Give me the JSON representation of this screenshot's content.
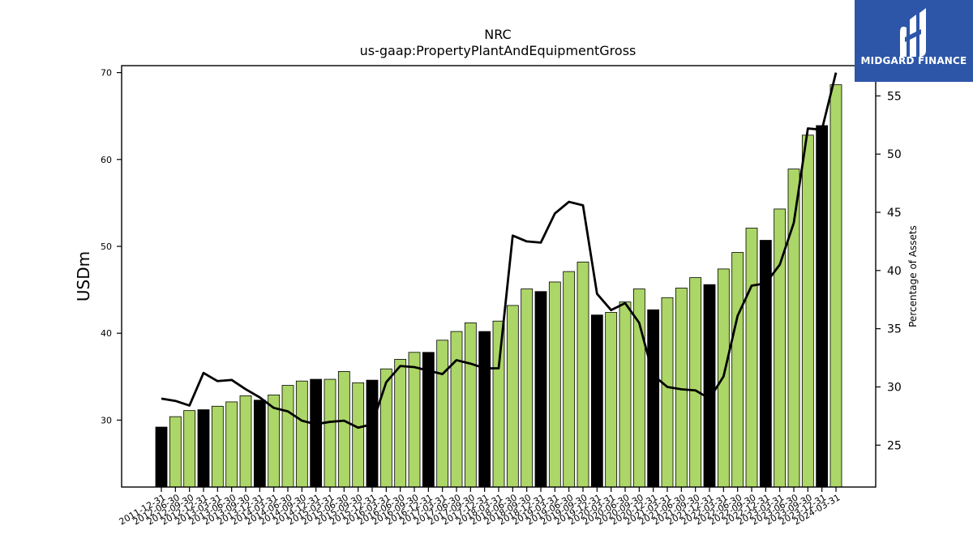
{
  "brand": {
    "name": "MIDGARD FINANCE",
    "logo_icon": "midgard-logo-icon",
    "background": "#2d56a8"
  },
  "chart_data": {
    "type": "bar",
    "title": "NRC",
    "subtitle": "us-gaap:PropertyPlantAndEquipmentGross",
    "ylabel": "USDm",
    "y2label": "Percentage of Assets",
    "ylim": [
      22.3,
      70.8
    ],
    "y2lim": [
      21.4,
      57.6
    ],
    "yticks": [
      "30",
      "40",
      "50",
      "60",
      "70"
    ],
    "y2ticks": [
      "25",
      "30",
      "35",
      "40",
      "45",
      "50",
      "55"
    ],
    "colors": {
      "annual_bar": "#000000",
      "quarter_bar": "#acd667",
      "line": "#000000"
    },
    "categories": [
      "2011-12-31",
      "2012-06-30",
      "2012-09-30",
      "2012-12-31",
      "2013-03-31",
      "2013-06-30",
      "2013-09-30",
      "2013-12-31",
      "2014-03-31",
      "2014-06-30",
      "2014-09-30",
      "2014-12-31",
      "2015-03-31",
      "2015-06-30",
      "2015-09-30",
      "2015-12-31",
      "2016-03-31",
      "2016-06-30",
      "2016-09-30",
      "2016-12-31",
      "2017-03-31",
      "2017-06-30",
      "2017-09-30",
      "2017-12-31",
      "2018-03-31",
      "2018-06-30",
      "2018-09-30",
      "2018-12-31",
      "2019-03-31",
      "2019-06-30",
      "2019-09-30",
      "2019-12-31",
      "2020-03-31",
      "2020-06-30",
      "2020-09-30",
      "2020-12-31",
      "2021-03-31",
      "2021-06-30",
      "2021-09-30",
      "2021-12-31",
      "2022-03-31",
      "2022-06-30",
      "2022-09-30",
      "2022-12-31",
      "2023-03-31",
      "2023-06-30",
      "2023-09-30",
      "2023-12-31",
      "2024-03-31"
    ],
    "annual": [
      true,
      false,
      false,
      true,
      false,
      false,
      false,
      true,
      false,
      false,
      false,
      true,
      false,
      false,
      false,
      true,
      false,
      false,
      false,
      true,
      false,
      false,
      false,
      true,
      false,
      false,
      false,
      true,
      false,
      false,
      false,
      true,
      false,
      false,
      false,
      true,
      false,
      false,
      false,
      true,
      false,
      false,
      false,
      true,
      false,
      false,
      false,
      true,
      false
    ],
    "series": [
      {
        "axis": "left",
        "values": [
          29.2,
          30.4,
          31.1,
          31.2,
          31.6,
          32.1,
          32.8,
          32.3,
          32.9,
          34.0,
          34.5,
          34.7,
          34.7,
          35.6,
          34.3,
          34.6,
          35.9,
          37.0,
          37.8,
          37.8,
          39.2,
          40.2,
          41.2,
          40.2,
          41.4,
          43.2,
          45.1,
          44.8,
          45.9,
          47.1,
          48.2,
          42.1,
          42.4,
          43.6,
          45.1,
          42.7,
          44.1,
          45.2,
          46.4,
          45.6,
          47.4,
          49.3,
          52.1,
          50.7,
          54.3,
          58.9,
          62.8,
          63.9,
          68.6
        ]
      },
      {
        "axis": "right",
        "values": [
          29.0,
          28.8,
          28.4,
          31.2,
          30.5,
          30.6,
          29.8,
          29.1,
          28.2,
          27.9,
          27.1,
          26.8,
          27.0,
          27.1,
          26.5,
          26.8,
          30.4,
          31.8,
          31.7,
          31.4,
          31.1,
          32.3,
          32.0,
          31.6,
          31.6,
          43.0,
          42.5,
          42.4,
          44.9,
          45.9,
          45.6,
          38.0,
          36.6,
          37.2,
          35.5,
          31.0,
          30.0,
          29.8,
          29.7,
          29.0,
          30.9,
          36.1,
          38.7,
          38.9,
          40.5,
          44.1,
          52.2,
          52.1,
          57.0
        ]
      }
    ]
  }
}
